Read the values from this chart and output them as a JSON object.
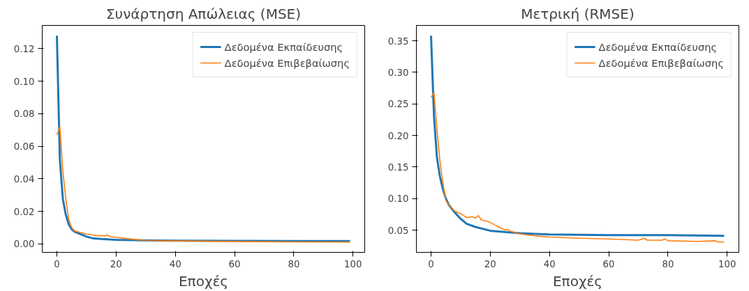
{
  "chart_data": [
    {
      "type": "line",
      "title": "Συνάρτηση Απώλειας (MSE)",
      "xlabel": "Εποχές",
      "xlim": [
        -4.95,
        103.95
      ],
      "xticks": [
        0,
        20,
        40,
        60,
        80,
        100
      ],
      "ylim": [
        -0.0052,
        0.1343
      ],
      "yticks": [
        {
          "value": 0,
          "label": "0.00"
        },
        {
          "value": 0.02,
          "label": "0.02"
        },
        {
          "value": 0.04,
          "label": "0.04"
        },
        {
          "value": 0.06,
          "label": "0.06"
        },
        {
          "value": 0.08,
          "label": "0.08"
        },
        {
          "value": 0.1,
          "label": "0.10"
        },
        {
          "value": 0.12,
          "label": "0.12"
        }
      ],
      "grid": false,
      "legend": "top right",
      "series": [
        {
          "name": "Δεδομένα Εκπαίδευσης",
          "color": "#1f77b4",
          "x": [
            0,
            1,
            2,
            3,
            4,
            5,
            6,
            8,
            10,
            12,
            15,
            20,
            30,
            40,
            60,
            80,
            99
          ],
          "values": [
            0.128,
            0.052,
            0.028,
            0.018,
            0.012,
            0.009,
            0.0075,
            0.006,
            0.0045,
            0.0035,
            0.003,
            0.0025,
            0.0022,
            0.002,
            0.0019,
            0.0018,
            0.0018
          ]
        },
        {
          "name": "Δεδομένα Επιβεβαίωσης",
          "color": "#ff7f0e",
          "x": [
            0,
            1,
            2,
            3,
            4,
            5,
            6,
            8,
            10,
            12,
            14,
            15,
            16,
            17,
            18,
            20,
            25,
            30,
            40,
            60,
            80,
            99
          ],
          "values": [
            0.067,
            0.072,
            0.045,
            0.028,
            0.015,
            0.01,
            0.008,
            0.007,
            0.006,
            0.0055,
            0.005,
            0.0052,
            0.0048,
            0.0055,
            0.0045,
            0.004,
            0.003,
            0.0022,
            0.0018,
            0.0015,
            0.0012,
            0.0011
          ]
        }
      ]
    },
    {
      "type": "line",
      "title": "Μετρική (RMSE)",
      "xlabel": "Εποχές",
      "xlim": [
        -4.95,
        103.95
      ],
      "xticks": [
        0,
        20,
        40,
        60,
        80,
        100
      ],
      "ylim": [
        0.0147,
        0.3744
      ],
      "yticks": [
        {
          "value": 0.05,
          "label": "0.05"
        },
        {
          "value": 0.1,
          "label": "0.10"
        },
        {
          "value": 0.15,
          "label": "0.15"
        },
        {
          "value": 0.2,
          "label": "0.20"
        },
        {
          "value": 0.25,
          "label": "0.25"
        },
        {
          "value": 0.3,
          "label": "0.30"
        },
        {
          "value": 0.35,
          "label": "0.35"
        }
      ],
      "grid": false,
      "legend": "top right",
      "series": [
        {
          "name": "Δεδομένα Εκπαίδευσης",
          "color": "#1f77b4",
          "x": [
            0,
            1,
            2,
            3,
            4,
            5,
            6,
            8,
            10,
            12,
            15,
            20,
            25,
            30,
            40,
            60,
            80,
            99
          ],
          "values": [
            0.358,
            0.23,
            0.165,
            0.135,
            0.115,
            0.1,
            0.09,
            0.078,
            0.068,
            0.06,
            0.055,
            0.049,
            0.047,
            0.045,
            0.043,
            0.042,
            0.042,
            0.041
          ]
        },
        {
          "name": "Δεδομένα Επιβεβαίωσης",
          "color": "#ff7f0e",
          "x": [
            0,
            1,
            2,
            3,
            4,
            5,
            6,
            8,
            10,
            12,
            14,
            15,
            16,
            17,
            19,
            20,
            22,
            25,
            26,
            27,
            30,
            35,
            40,
            50,
            60,
            70,
            72,
            73,
            78,
            79,
            80,
            90,
            96,
            97,
            99
          ],
          "values": [
            0.26,
            0.268,
            0.21,
            0.16,
            0.125,
            0.097,
            0.09,
            0.08,
            0.076,
            0.07,
            0.071,
            0.069,
            0.073,
            0.066,
            0.064,
            0.062,
            0.057,
            0.05,
            0.051,
            0.048,
            0.044,
            0.041,
            0.039,
            0.037,
            0.036,
            0.034,
            0.037,
            0.034,
            0.034,
            0.036,
            0.033,
            0.032,
            0.033,
            0.031,
            0.031
          ]
        }
      ]
    }
  ]
}
